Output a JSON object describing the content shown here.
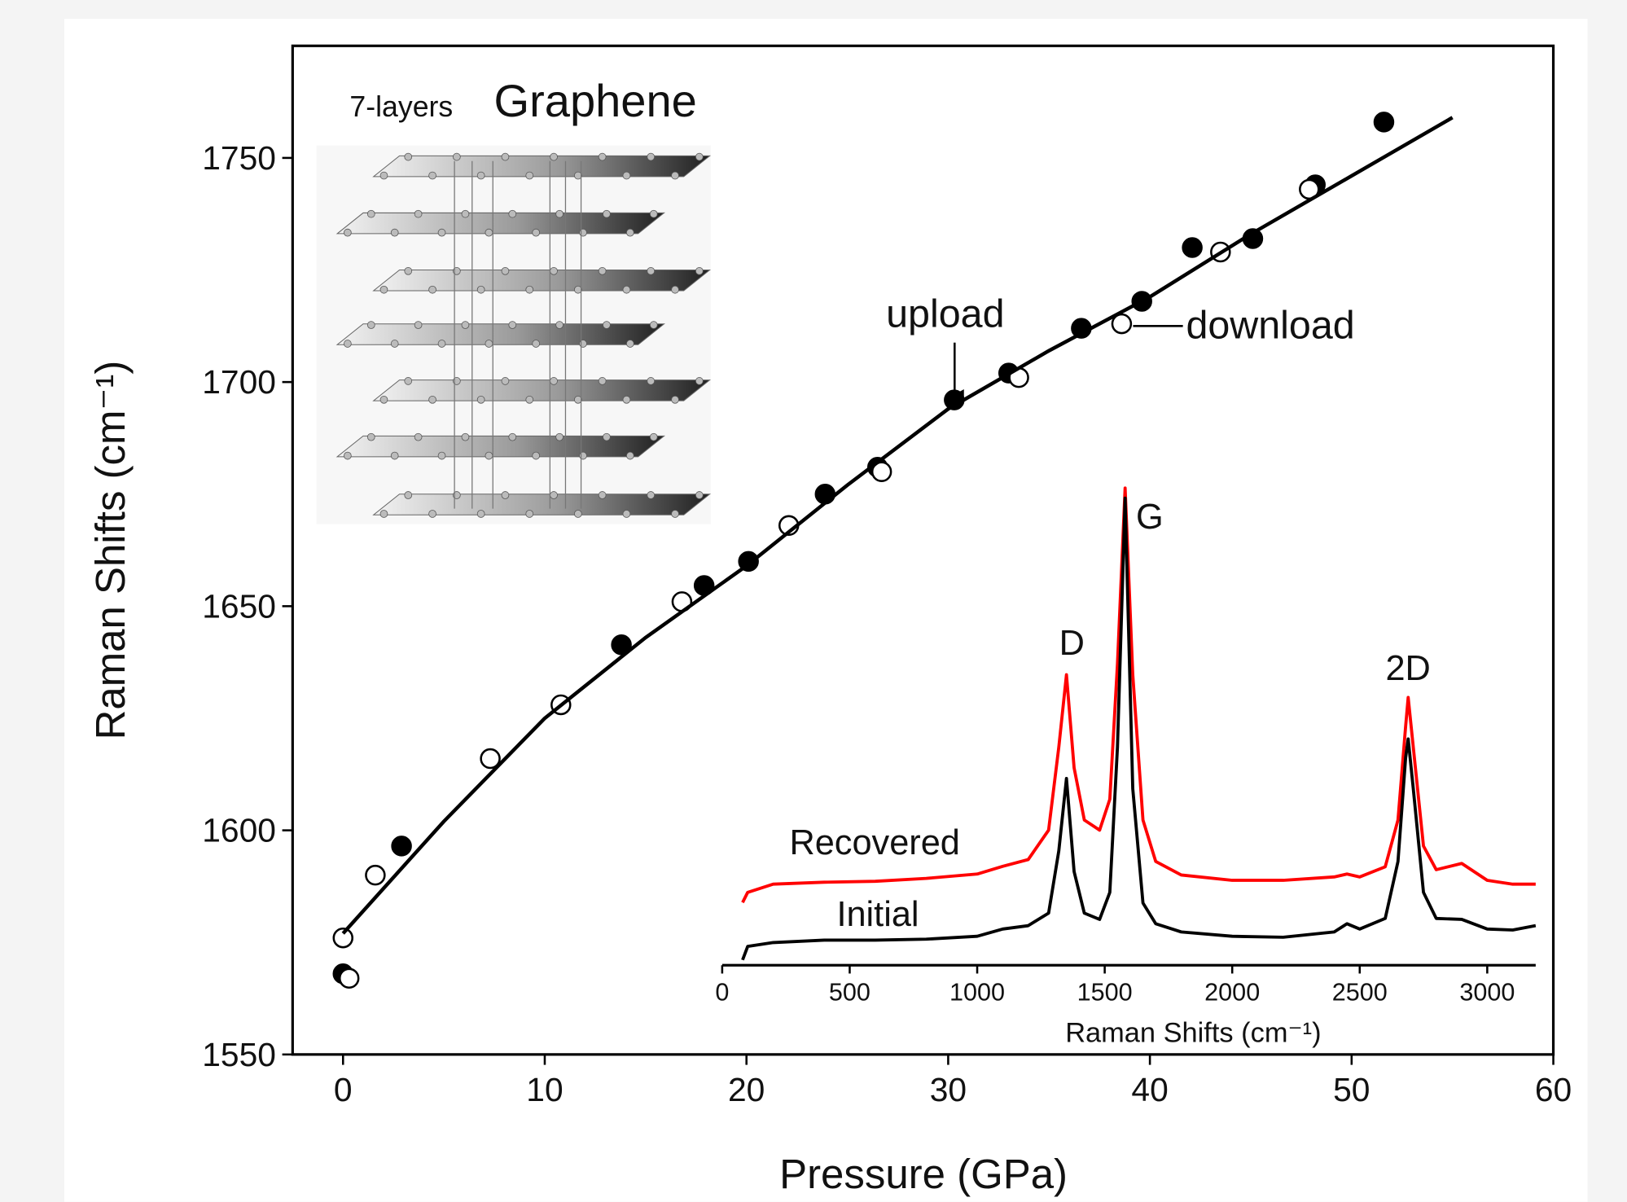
{
  "chart_data": [
    {
      "type": "scatter",
      "xlabel": "Pressure (GPa)",
      "ylabel": "Raman Shifts (cm⁻¹)",
      "xlim": [
        -2.5,
        60
      ],
      "ylim": [
        1550,
        1775
      ],
      "xticks": [
        0,
        10,
        20,
        30,
        40,
        50,
        60
      ],
      "yticks": [
        1550,
        1600,
        1650,
        1700,
        1750
      ],
      "annotations": [
        "7-layers",
        "Graphene"
      ],
      "series": [
        {
          "name": "upload",
          "color": "#000000",
          "marker": "filled",
          "x": [
            0,
            2.9,
            13.8,
            17.9,
            20.1,
            23.9,
            26.5,
            30.3,
            33.0,
            36.6,
            39.6,
            42.1,
            45.1,
            48.2,
            51.6
          ],
          "values": [
            1568,
            1596.5,
            1641.4,
            1654.6,
            1660,
            1675,
            1681,
            1696,
            1702,
            1712,
            1718,
            1730,
            1732,
            1744,
            1758
          ]
        },
        {
          "name": "download",
          "color": "#000000",
          "marker": "open",
          "x": [
            0.3,
            0,
            1.6,
            7.3,
            10.8,
            16.8,
            22.1,
            26.7,
            33.5,
            38.6,
            43.5,
            47.9
          ],
          "values": [
            1567,
            1576,
            1590,
            1616,
            1628,
            1651,
            1668,
            1680,
            1701,
            1713,
            1729,
            1743
          ]
        },
        {
          "type": "line",
          "color": "#000000",
          "x": [
            0,
            5,
            10,
            15,
            20,
            25,
            30,
            35,
            40,
            45,
            50,
            55
          ],
          "values": [
            1577,
            1602,
            1625,
            1643,
            1659,
            1677,
            1694,
            1707,
            1719,
            1733,
            1746,
            1759
          ]
        }
      ]
    },
    {
      "type": "line",
      "xlabel": "Raman Shifts (cm⁻¹)",
      "xlim": [
        0,
        3190
      ],
      "ylim": [
        0,
        100
      ],
      "xticks": [
        0,
        500,
        1000,
        1500,
        2000,
        2500,
        3000
      ],
      "annotations": [
        "D",
        "G",
        "2D"
      ],
      "x": [
        80,
        100,
        200,
        400,
        600,
        800,
        1000,
        1100,
        1200,
        1280,
        1320,
        1350,
        1380,
        1420,
        1480,
        1520,
        1550,
        1580,
        1610,
        1650,
        1700,
        1800,
        2000,
        2200,
        2400,
        2450,
        2500,
        2600,
        2650,
        2680,
        2690,
        2710,
        2750,
        2800,
        2900,
        3000,
        3100,
        3190
      ],
      "series": [
        {
          "name": "Recovered",
          "color": "#ff0000",
          "values": [
            13,
            15.1,
            16.8,
            17.2,
            17.4,
            18,
            18.9,
            20.5,
            21.9,
            28,
            45.2,
            60.2,
            40.9,
            30.1,
            28,
            34.4,
            62.4,
            98.9,
            60.2,
            30.1,
            21.5,
            18.7,
            17.6,
            17.6,
            18.3,
            18.9,
            18.3,
            20.4,
            30.1,
            49.5,
            55.5,
            45.2,
            24.7,
            19.8,
            21.1,
            17.6,
            16.8,
            16.8
          ]
        },
        {
          "name": "Initial",
          "color": "#000000",
          "values": [
            1.1,
            3.9,
            4.7,
            5.2,
            5.2,
            5.4,
            6.0,
            7.5,
            8.2,
            10.8,
            23.7,
            38.7,
            19.4,
            10.8,
            9.5,
            15.1,
            45.2,
            96.8,
            36.6,
            12.9,
            8.6,
            6.9,
            6.0,
            5.8,
            6.9,
            8.6,
            7.5,
            9.7,
            21.5,
            43,
            46.9,
            36.6,
            15.1,
            9.7,
            9.5,
            7.5,
            7.3,
            8.2
          ]
        }
      ]
    }
  ]
}
